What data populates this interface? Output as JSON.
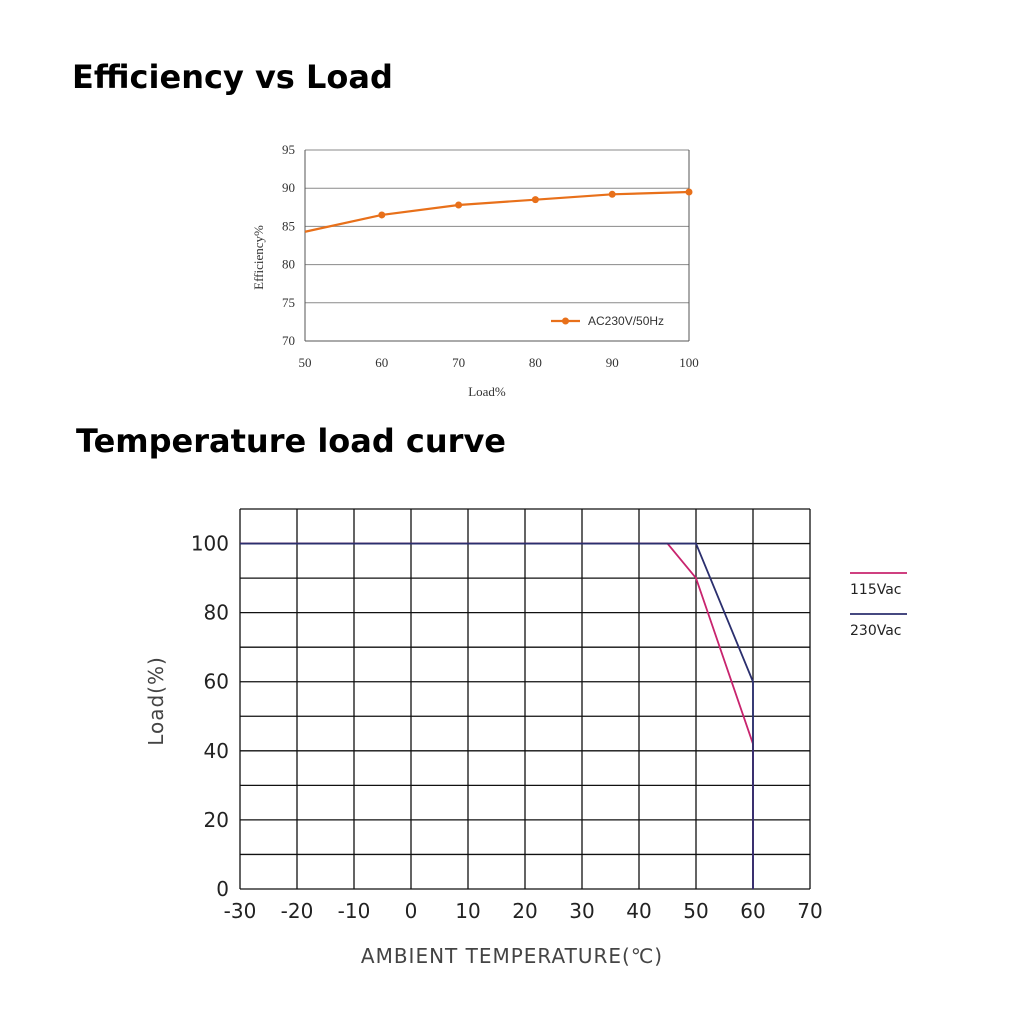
{
  "headings": {
    "efficiency": "Efficiency vs Load",
    "temperature": "Temperature load curve"
  },
  "chart_data": [
    {
      "type": "line",
      "xlabel": "Load%",
      "ylabel": "Efficiency%",
      "xlim": [
        50,
        100
      ],
      "ylim": [
        70,
        95
      ],
      "x_ticks": [
        "50",
        "60",
        "70",
        "80",
        "90",
        "100"
      ],
      "y_ticks": [
        "70",
        "75",
        "80",
        "85",
        "90",
        "95"
      ],
      "grid": "horizontal",
      "legend_position": "bottom-right",
      "series": [
        {
          "name": "AC230V/50Hz",
          "color": "#E8701A",
          "x": [
            50,
            60,
            70,
            80,
            90,
            100
          ],
          "y": [
            84.3,
            86.5,
            87.8,
            88.5,
            89.2,
            89.5
          ]
        }
      ]
    },
    {
      "type": "line",
      "xlabel": "AMBIENT TEMPERATURE(℃)",
      "ylabel": "Load(%)",
      "xlim": [
        -30,
        70
      ],
      "ylim": [
        0,
        110
      ],
      "x_ticks": [
        "-30",
        "-20",
        "-10",
        "0",
        "10",
        "20",
        "30",
        "40",
        "50",
        "60",
        "70"
      ],
      "y_ticks": [
        "0",
        "20",
        "40",
        "60",
        "80",
        "100"
      ],
      "grid": "on",
      "legend_position": "right",
      "series": [
        {
          "name": "115Vac",
          "color": "#C8246E",
          "x": [
            -30,
            45,
            50,
            60,
            60
          ],
          "y": [
            100,
            100,
            90,
            42,
            0
          ]
        },
        {
          "name": "230Vac",
          "color": "#2B2F6E",
          "x": [
            -30,
            50,
            60,
            60
          ],
          "y": [
            100,
            100,
            60,
            0
          ]
        }
      ]
    }
  ]
}
